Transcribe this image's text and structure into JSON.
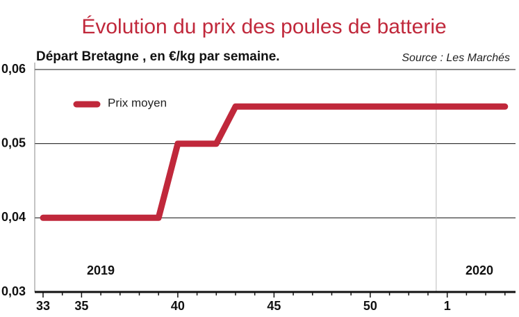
{
  "chart_data": {
    "type": "line",
    "title": "Évolution du prix des poules de batterie",
    "subtitle": "Départ Bretagne , en €/kg par semaine.",
    "source": "Source : Les Marchés",
    "categories": [
      "33",
      null,
      "35",
      null,
      null,
      null,
      null,
      "40",
      null,
      null,
      null,
      null,
      "45",
      null,
      null,
      null,
      null,
      "50",
      null,
      null,
      null,
      "1",
      null,
      null,
      null
    ],
    "series": [
      {
        "name": "Prix moyen",
        "color": "#c0283b",
        "values": [
          0.04,
          0.04,
          0.04,
          0.04,
          0.04,
          0.04,
          0.04,
          0.05,
          0.05,
          0.05,
          0.055,
          0.055,
          0.055,
          0.055,
          0.055,
          0.055,
          0.055,
          0.055,
          0.055,
          0.055,
          0.055,
          0.055,
          0.055,
          0.055,
          0.055
        ]
      }
    ],
    "annotations": [
      "2019",
      "2020"
    ],
    "ylim": [
      0.03,
      0.06
    ],
    "yticks": [
      {
        "value": 0.03,
        "label": "0,03"
      },
      {
        "value": 0.04,
        "label": "0,04"
      },
      {
        "value": 0.05,
        "label": "0,05"
      },
      {
        "value": 0.06,
        "label": "0,06"
      }
    ],
    "grid": true,
    "legend": "top-left"
  }
}
